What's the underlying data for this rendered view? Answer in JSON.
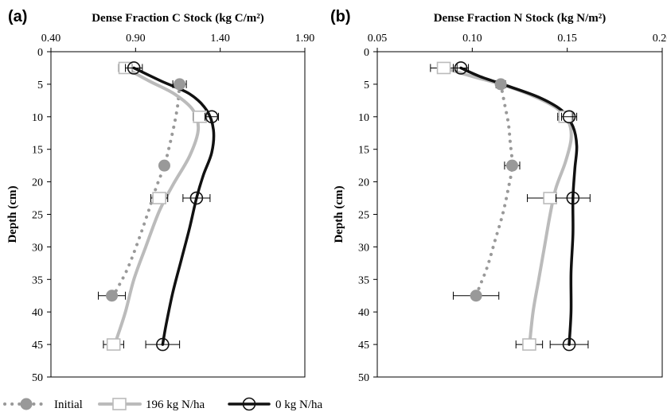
{
  "legend": {
    "entries": [
      {
        "label": "Initial",
        "color": "#999999",
        "style": "dotted",
        "marker": "filled-circle"
      },
      {
        "label": "196 kg N/ha",
        "color": "#bbbbbb",
        "style": "solid",
        "marker": "open-square"
      },
      {
        "label": "0 kg N/ha",
        "color": "#111111",
        "style": "solid",
        "marker": "open-circle"
      }
    ]
  },
  "chart_data": [
    {
      "type": "line",
      "panel": "(a)",
      "title": "Dense Fraction C Stock (kg C/m²)",
      "xlabel": "Dense Fraction C Stock (kg C/m²)",
      "ylabel": "Depth (cm)",
      "xlim": [
        0.4,
        1.9
      ],
      "ylim": [
        0,
        50
      ],
      "y_inverted": true,
      "x_axis_position": "top",
      "xticks": [
        "0.40",
        "0.90",
        "1.40",
        "1.90"
      ],
      "yticks": [
        "0",
        "5",
        "10",
        "15",
        "20",
        "25",
        "30",
        "35",
        "40",
        "45",
        "50"
      ],
      "grid": false,
      "series": [
        {
          "name": "Initial",
          "points": [
            {
              "x": 1.16,
              "y": 5.0,
              "err": 0.04
            },
            {
              "x": 1.07,
              "y": 17.5,
              "err": 0.02
            },
            {
              "x": 0.76,
              "y": 37.5,
              "err": 0.08
            }
          ],
          "curve": [
            [
              1.16,
              5.0
            ],
            [
              1.15,
              8.0
            ],
            [
              1.13,
              11.0
            ],
            [
              1.1,
              14.5
            ],
            [
              1.07,
              17.5
            ],
            [
              1.02,
              21.0
            ],
            [
              0.97,
              25.0
            ],
            [
              0.91,
              29.5
            ],
            [
              0.85,
              33.5
            ],
            [
              0.79,
              36.5
            ],
            [
              0.76,
              38.0
            ]
          ]
        },
        {
          "name": "196 kg N/ha",
          "points": [
            {
              "x": 0.84,
              "y": 2.5,
              "err": 0.04
            },
            {
              "x": 1.28,
              "y": 10.0,
              "err": 0.04
            },
            {
              "x": 1.04,
              "y": 22.5,
              "err": 0.05
            },
            {
              "x": 0.77,
              "y": 45.0,
              "err": 0.06
            }
          ],
          "curve": [
            [
              0.84,
              2.5
            ],
            [
              0.98,
              4.5
            ],
            [
              1.13,
              6.5
            ],
            [
              1.24,
              9.0
            ],
            [
              1.27,
              12.0
            ],
            [
              1.22,
              16.0
            ],
            [
              1.12,
              20.5
            ],
            [
              1.04,
              24.5
            ],
            [
              0.96,
              30.0
            ],
            [
              0.89,
              35.0
            ],
            [
              0.84,
              40.0
            ],
            [
              0.79,
              44.0
            ],
            [
              0.77,
              45.5
            ]
          ]
        },
        {
          "name": "0 kg N/ha",
          "points": [
            {
              "x": 0.89,
              "y": 2.5,
              "err": 0.05
            },
            {
              "x": 1.35,
              "y": 10.0,
              "err": 0.04
            },
            {
              "x": 1.26,
              "y": 22.5,
              "err": 0.08
            },
            {
              "x": 1.06,
              "y": 45.0,
              "err": 0.1
            }
          ],
          "curve": [
            [
              0.89,
              2.5
            ],
            [
              1.05,
              4.5
            ],
            [
              1.22,
              6.5
            ],
            [
              1.32,
              9.0
            ],
            [
              1.36,
              12.0
            ],
            [
              1.35,
              15.5
            ],
            [
              1.3,
              19.0
            ],
            [
              1.26,
              22.5
            ],
            [
              1.22,
              27.0
            ],
            [
              1.17,
              32.0
            ],
            [
              1.12,
              37.0
            ],
            [
              1.08,
              42.0
            ],
            [
              1.06,
              45.0
            ]
          ]
        }
      ]
    },
    {
      "type": "line",
      "panel": "(b)",
      "title": "Dense Fraction N Stock (kg N/m²)",
      "xlabel": "Dense Fraction N Stock (kg N/m²)",
      "ylabel": "Depth (cm)",
      "xlim": [
        0.05,
        0.2
      ],
      "ylim": [
        0,
        50
      ],
      "y_inverted": true,
      "x_axis_position": "top",
      "xticks": [
        "0.05",
        "0.10",
        "0.15",
        "0.20"
      ],
      "yticks": [
        "0",
        "5",
        "10",
        "15",
        "20",
        "25",
        "30",
        "35",
        "40",
        "45",
        "50"
      ],
      "grid": false,
      "series": [
        {
          "name": "Initial",
          "points": [
            {
              "x": 0.115,
              "y": 5.0,
              "err": 0.0025
            },
            {
              "x": 0.121,
              "y": 17.5,
              "err": 0.004
            },
            {
              "x": 0.102,
              "y": 37.5,
              "err": 0.012
            }
          ],
          "curve": [
            [
              0.115,
              5.0
            ],
            [
              0.117,
              8.0
            ],
            [
              0.119,
              11.0
            ],
            [
              0.12,
              14.0
            ],
            [
              0.121,
              17.5
            ],
            [
              0.119,
              21.0
            ],
            [
              0.116,
              25.0
            ],
            [
              0.112,
              29.0
            ],
            [
              0.108,
              33.0
            ],
            [
              0.104,
              36.0
            ],
            [
              0.102,
              37.5
            ]
          ]
        },
        {
          "name": "196 kg N/ha",
          "points": [
            {
              "x": 0.085,
              "y": 2.5,
              "err": 0.007
            },
            {
              "x": 0.149,
              "y": 10.0,
              "err": 0.004
            },
            {
              "x": 0.141,
              "y": 22.5,
              "err": 0.012
            },
            {
              "x": 0.13,
              "y": 45.0,
              "err": 0.007
            }
          ],
          "curve": [
            [
              0.085,
              2.5
            ],
            [
              0.1,
              3.8
            ],
            [
              0.115,
              5.0
            ],
            [
              0.132,
              6.8
            ],
            [
              0.145,
              8.8
            ],
            [
              0.151,
              11.0
            ],
            [
              0.152,
              13.5
            ],
            [
              0.149,
              17.0
            ],
            [
              0.144,
              21.0
            ],
            [
              0.141,
              25.0
            ],
            [
              0.138,
              30.0
            ],
            [
              0.135,
              35.0
            ],
            [
              0.132,
              40.0
            ],
            [
              0.13,
              45.5
            ]
          ]
        },
        {
          "name": "0 kg N/ha",
          "points": [
            {
              "x": 0.094,
              "y": 2.5,
              "err": 0.004
            },
            {
              "x": 0.151,
              "y": 10.0,
              "err": 0.004
            },
            {
              "x": 0.153,
              "y": 22.5,
              "err": 0.009
            },
            {
              "x": 0.151,
              "y": 45.0,
              "err": 0.01
            }
          ],
          "curve": [
            [
              0.094,
              2.5
            ],
            [
              0.104,
              3.8
            ],
            [
              0.118,
              5.2
            ],
            [
              0.135,
              7.0
            ],
            [
              0.147,
              9.0
            ],
            [
              0.153,
              11.5
            ],
            [
              0.155,
              14.5
            ],
            [
              0.154,
              18.0
            ],
            [
              0.153,
              22.5
            ],
            [
              0.153,
              28.0
            ],
            [
              0.152,
              34.0
            ],
            [
              0.152,
              40.0
            ],
            [
              0.151,
              45.0
            ]
          ]
        }
      ]
    }
  ]
}
